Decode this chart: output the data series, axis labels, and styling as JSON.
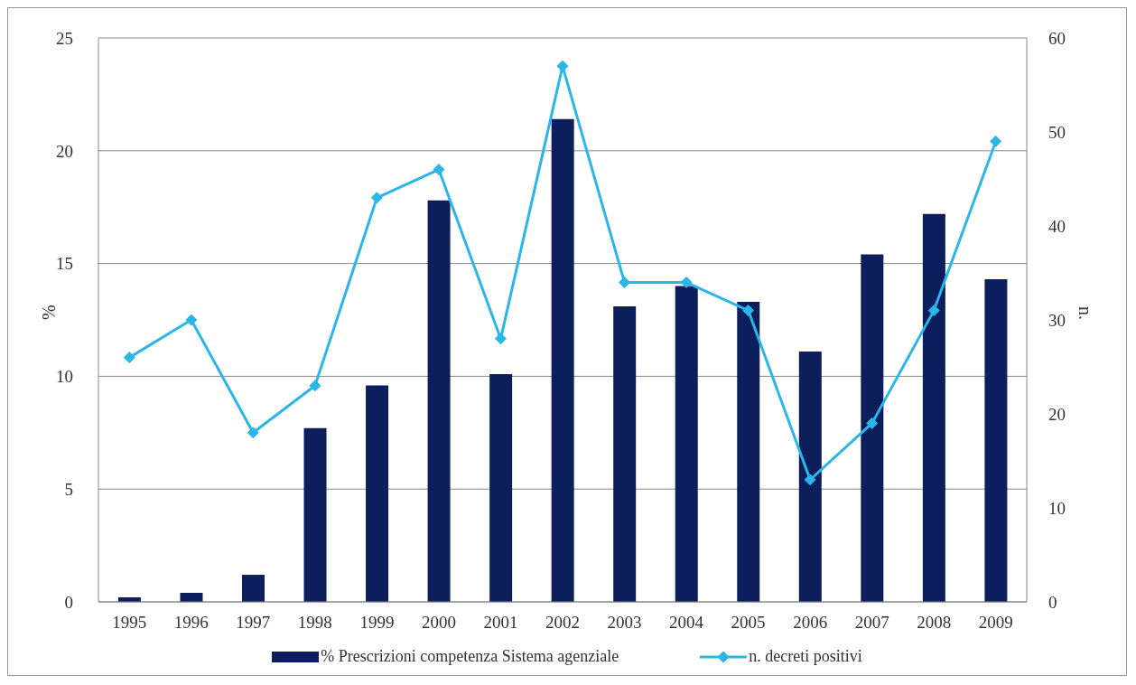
{
  "chart_data": {
    "type": "bar",
    "categories": [
      "1995",
      "1996",
      "1997",
      "1998",
      "1999",
      "2000",
      "2001",
      "2002",
      "2003",
      "2004",
      "2005",
      "2006",
      "2007",
      "2008",
      "2009"
    ],
    "series": [
      {
        "name": "% Prescrizioni competenza Sistema agenziale",
        "color": "#0c1f5c",
        "values": [
          0.2,
          0.4,
          1.2,
          7.7,
          9.6,
          17.8,
          10.1,
          21.4,
          13.1,
          14.0,
          13.3,
          11.1,
          15.4,
          17.2,
          14.3
        ]
      },
      {
        "name": "n. decreti positivi",
        "type": "line",
        "axis": "y2",
        "color": "#2bb5e8",
        "values": [
          26,
          30,
          18,
          23,
          43,
          46,
          28,
          57,
          34,
          34,
          31,
          13,
          19,
          31,
          49
        ]
      }
    ],
    "ylabel": "%",
    "y2label": "n.",
    "ylim": [
      0,
      25
    ],
    "yticks": [
      0,
      5,
      10,
      15,
      20,
      25
    ],
    "y2lim": [
      0,
      60
    ],
    "y2ticks": [
      0,
      10,
      20,
      30,
      40,
      50,
      60
    ],
    "grid": "y",
    "legend": "bottom",
    "marker": "diamond",
    "line_style": "solid"
  }
}
